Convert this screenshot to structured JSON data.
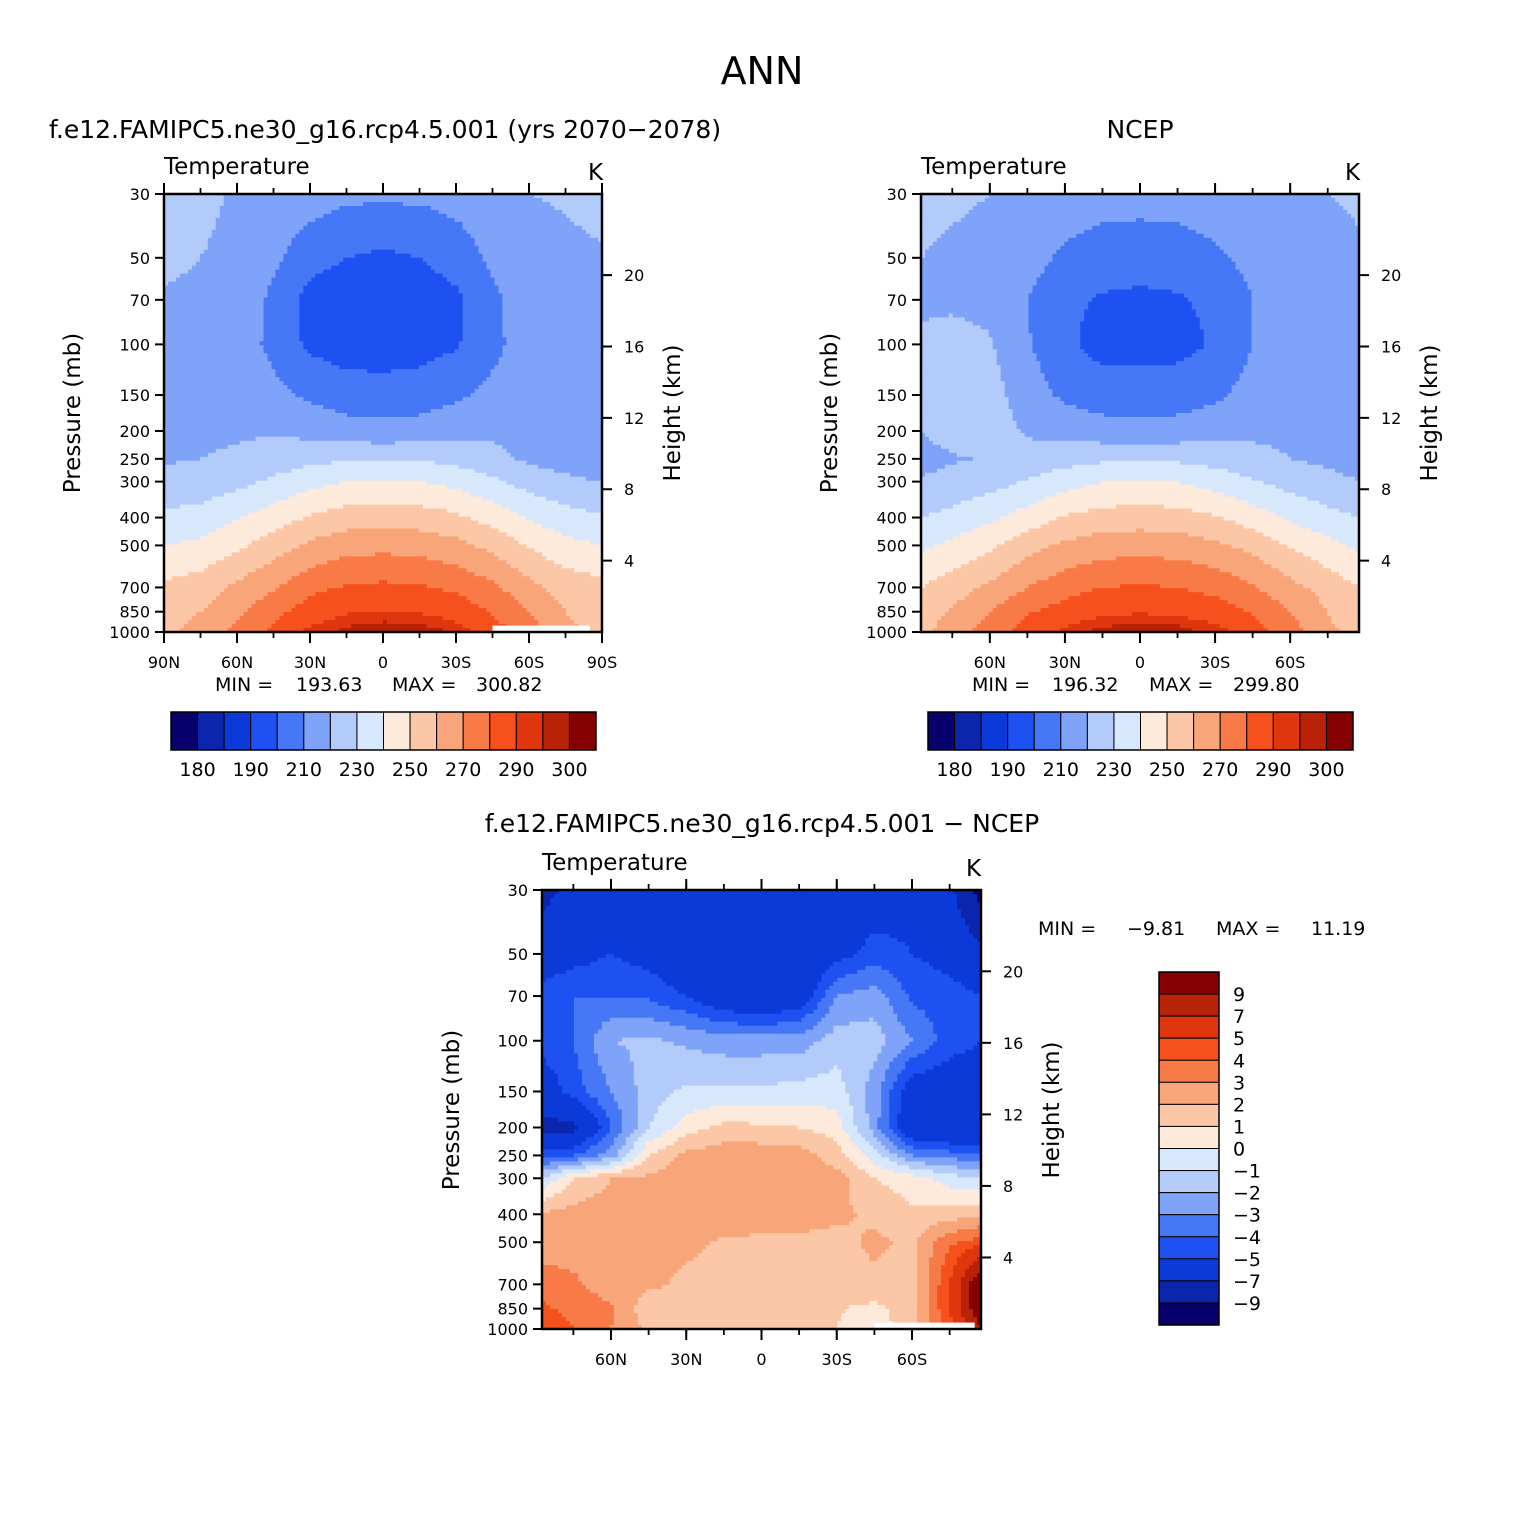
{
  "page_title": "ANN",
  "colors": {
    "temperature_levels": [
      "#08006c",
      "#0b26ac",
      "#0c3ad9",
      "#1e51f2",
      "#4677f6",
      "#7ea3f8",
      "#b2cbfb",
      "#d8e8fc",
      "#feeada",
      "#fcc7a6",
      "#f9a57a",
      "#f87a46",
      "#f6501d",
      "#e0360e",
      "#b82206",
      "#850000"
    ],
    "difference_levels": [
      "#08006c",
      "#0b26ac",
      "#0c3ad9",
      "#1e51f2",
      "#4677f6",
      "#7ea3f8",
      "#b2cbfb",
      "#d8e8fc",
      "#feeada",
      "#fcc7a6",
      "#f9a57a",
      "#f87a46",
      "#f6501d",
      "#e0360e",
      "#b82206",
      "#850000"
    ]
  },
  "chart_data": [
    {
      "type": "heatmap",
      "id": "model",
      "title": "f.e12.FAMIPC5.ne30_g16.rcp4.5.001 (yrs 2070−2078)",
      "field": "Temperature",
      "units": "K",
      "ylabel": "Pressure (mb)",
      "y2label": "Height (km)",
      "x_ticks": [
        "90N",
        "60N",
        "30N",
        "0",
        "30S",
        "60S",
        "90S"
      ],
      "x_tick_lat": [
        90,
        60,
        30,
        0,
        -30,
        -60,
        -90
      ],
      "xlim": [
        90,
        -90
      ],
      "pressure_ticks": [
        30,
        50,
        70,
        100,
        150,
        200,
        250,
        300,
        400,
        500,
        700,
        850,
        1000
      ],
      "pressure_tick_labels": [
        "30",
        "50",
        "70",
        "100",
        "150",
        "200",
        "250",
        "300",
        "400",
        "500",
        "700",
        "850",
        "1000"
      ],
      "ylim": [
        1000,
        30
      ],
      "height_ticks_km": [
        4,
        8,
        12,
        16,
        20
      ],
      "height_tick_labels": [
        "4",
        "8",
        "12",
        "16",
        "20"
      ],
      "stats": {
        "min_label": "MIN =",
        "min": "193.63",
        "max_label": "MAX =",
        "max": "300.82"
      },
      "contour_levels": [
        180,
        185,
        190,
        200,
        210,
        220,
        230,
        240,
        250,
        260,
        270,
        280,
        290,
        295,
        300
      ],
      "colorbar_labels": [
        "180",
        "190",
        "210",
        "230",
        "250",
        "270",
        "290",
        "300"
      ],
      "missing_lat_range": [
        -45,
        -85
      ],
      "lats": [
        90,
        75,
        60,
        45,
        30,
        15,
        0,
        -15,
        -30,
        -45,
        -60,
        -75,
        -90
      ],
      "grid_values": [
        [
          224,
          222,
          219,
          217,
          215,
          212,
          212,
          212,
          214,
          217,
          220,
          221,
          223
        ],
        [
          222,
          220,
          218,
          212,
          204,
          200,
          198,
          200,
          204,
          212,
          216,
          218,
          219
        ],
        [
          219,
          218,
          216,
          208,
          196,
          193.63,
          194,
          195,
          198,
          208,
          215,
          215,
          213
        ],
        [
          219,
          218,
          216,
          207,
          198,
          195,
          195,
          196,
          199,
          207,
          216,
          214,
          211
        ],
        [
          218,
          218,
          218,
          213,
          208,
          205,
          204,
          205,
          208,
          213,
          215,
          214,
          212
        ],
        [
          218,
          219,
          219,
          219,
          217,
          214,
          213,
          214,
          217,
          218,
          216,
          214,
          213
        ],
        [
          219,
          220,
          221,
          224,
          227,
          229,
          229,
          229,
          227,
          223,
          218,
          216,
          214
        ],
        [
          223,
          224,
          227,
          232,
          237,
          240,
          241,
          240,
          237,
          232,
          226,
          222,
          220
        ],
        [
          232,
          234,
          239,
          245,
          251,
          255,
          256,
          255,
          252,
          246,
          239,
          234,
          231
        ],
        [
          240,
          242,
          248,
          255,
          262,
          266,
          267,
          266,
          263,
          257,
          249,
          243,
          240
        ],
        [
          252,
          255,
          262,
          269,
          277,
          281,
          282,
          281,
          278,
          272,
          263,
          256,
          253
        ],
        [
          256,
          260,
          268,
          277,
          285,
          289,
          290,
          289,
          286,
          279,
          270,
          260,
          256
        ],
        [
          258,
          263,
          273,
          282,
          292,
          297,
          300,
          299,
          294,
          285,
          275,
          262,
          258
        ]
      ]
    },
    {
      "type": "heatmap",
      "id": "obs",
      "title": "NCEP",
      "field": "Temperature",
      "units": "K",
      "ylabel": "Pressure (mb)",
      "y2label": "Height (km)",
      "x_ticks": [
        "60N",
        "30N",
        "0",
        "30S",
        "60S"
      ],
      "x_tick_lat": [
        60,
        30,
        0,
        -30,
        -60
      ],
      "xlim": [
        87.5,
        -87.5
      ],
      "pressure_ticks": [
        30,
        50,
        70,
        100,
        150,
        200,
        250,
        300,
        400,
        500,
        700,
        850,
        1000
      ],
      "pressure_tick_labels": [
        "30",
        "50",
        "70",
        "100",
        "150",
        "200",
        "250",
        "300",
        "400",
        "500",
        "700",
        "850",
        "1000"
      ],
      "ylim": [
        1000,
        30
      ],
      "height_ticks_km": [
        4,
        8,
        12,
        16,
        20
      ],
      "height_tick_labels": [
        "4",
        "8",
        "12",
        "16",
        "20"
      ],
      "stats": {
        "min_label": "MIN =",
        "min": "196.32",
        "max_label": "MAX =",
        "max": "299.80"
      },
      "contour_levels": [
        180,
        185,
        190,
        200,
        210,
        220,
        230,
        240,
        250,
        260,
        270,
        280,
        290,
        295,
        300
      ],
      "colorbar_labels": [
        "180",
        "190",
        "210",
        "230",
        "250",
        "270",
        "290",
        "300"
      ],
      "missing_lat_range": null,
      "lats": [
        87.5,
        75,
        60,
        45,
        30,
        15,
        0,
        -15,
        -30,
        -45,
        -60,
        -75,
        -87.5
      ],
      "grid_values": [
        [
          222,
          221,
          220,
          218,
          216,
          214,
          214,
          214,
          216,
          218,
          219,
          220,
          221
        ],
        [
          220,
          219,
          218,
          214,
          208,
          205,
          204,
          205,
          208,
          213,
          216,
          218,
          219
        ],
        [
          218,
          218,
          217,
          210,
          202,
          199,
          198,
          199,
          202,
          210,
          215,
          216,
          215
        ],
        [
          222,
          224,
          221,
          211,
          202,
          196.32,
          197,
          197,
          201,
          210,
          215,
          213,
          210
        ],
        [
          225,
          227,
          224,
          215,
          208,
          205,
          204,
          205,
          208,
          214,
          216,
          214,
          212
        ],
        [
          220,
          224,
          224,
          219,
          216,
          214,
          213,
          214,
          216,
          218,
          218,
          216,
          214
        ],
        [
          217,
          219,
          221,
          223,
          226,
          228,
          228,
          228,
          226,
          223,
          220,
          218,
          216
        ],
        [
          221,
          223,
          226,
          231,
          236,
          240,
          240,
          240,
          236,
          231,
          226,
          223,
          220
        ],
        [
          230,
          233,
          238,
          244,
          251,
          254,
          255,
          254,
          251,
          245,
          238,
          233,
          230
        ],
        [
          238,
          242,
          248,
          256,
          262,
          265,
          266,
          265,
          262,
          257,
          249,
          243,
          238
        ],
        [
          250,
          255,
          262,
          270,
          276,
          280,
          281,
          280,
          277,
          271,
          263,
          256,
          250
        ],
        [
          256,
          261,
          270,
          279,
          284,
          288,
          289,
          288,
          285,
          279,
          270,
          260,
          254
        ],
        [
          258,
          264,
          275,
          284,
          292,
          297,
          299.8,
          298,
          293,
          285,
          275,
          262,
          256
        ]
      ]
    },
    {
      "type": "heatmap",
      "id": "diff",
      "title": "f.e12.FAMIPC5.ne30_g16.rcp4.5.001 − NCEP",
      "field": "Temperature",
      "units": "K",
      "ylabel": "Pressure (mb)",
      "y2label": "Height (km)",
      "x_ticks": [
        "60N",
        "30N",
        "0",
        "30S",
        "60S"
      ],
      "x_tick_lat": [
        60,
        30,
        0,
        -30,
        -60
      ],
      "xlim": [
        87.5,
        -87.5
      ],
      "pressure_ticks": [
        30,
        50,
        70,
        100,
        150,
        200,
        250,
        300,
        400,
        500,
        700,
        850,
        1000
      ],
      "pressure_tick_labels": [
        "30",
        "50",
        "70",
        "100",
        "150",
        "200",
        "250",
        "300",
        "400",
        "500",
        "700",
        "850",
        "1000"
      ],
      "ylim": [
        1000,
        30
      ],
      "height_ticks_km": [
        4,
        8,
        12,
        16,
        20
      ],
      "height_tick_labels": [
        "4",
        "8",
        "12",
        "16",
        "20"
      ],
      "stats": {
        "min_label": "MIN =",
        "min": "−9.81",
        "max_label": "MAX =",
        "max": "11.19"
      },
      "contour_levels": [
        -9,
        -7,
        -5,
        -4,
        -3,
        -2,
        -1,
        0,
        1,
        2,
        3,
        4,
        5,
        7,
        9
      ],
      "colorbar_labels": [
        "9",
        "7",
        "5",
        "4",
        "3",
        "2",
        "1",
        "0",
        "−1",
        "−2",
        "−3",
        "−4",
        "−5",
        "−7",
        "−9"
      ],
      "missing_lat_range": [
        -45,
        -85
      ],
      "lats": [
        87.5,
        75,
        60,
        45,
        30,
        15,
        0,
        -15,
        -30,
        -45,
        -60,
        -75,
        -87.5
      ],
      "grid_values": [
        [
          -7.5,
          -6.5,
          -6,
          -6.2,
          -6.8,
          -7,
          -6,
          -6.5,
          -6.5,
          -6,
          -5.5,
          -6.5,
          -9.81
        ],
        [
          -6,
          -5.5,
          -5,
          -5.5,
          -6.5,
          -7,
          -7,
          -6.8,
          -5.5,
          -4.5,
          -5,
          -5.5,
          -6.5
        ],
        [
          -4.5,
          -4,
          -4,
          -4.2,
          -5,
          -6.2,
          -6.8,
          -6,
          -3,
          -2.5,
          -4.2,
          -4.5,
          -5
        ],
        [
          -4.5,
          -4,
          -2,
          -1.8,
          -2.2,
          -2.5,
          -2.5,
          -2.5,
          -1.5,
          -1.5,
          -3,
          -4.5,
          -5
        ],
        [
          -6,
          -4.5,
          -3,
          -1.5,
          -0.8,
          -0.8,
          -0.8,
          -0.6,
          -0.5,
          -2.5,
          -6,
          -6,
          -6
        ],
        [
          -7.5,
          -7.5,
          -4,
          -1,
          0.5,
          1.3,
          1.2,
          1,
          0.5,
          -2.5,
          -6.5,
          -7,
          -7
        ],
        [
          -4.5,
          -4,
          -2.5,
          1,
          2.3,
          2.6,
          2.6,
          2.5,
          1.5,
          -0.5,
          -3,
          -3.5,
          -3.5
        ],
        [
          -1,
          1,
          2,
          2.2,
          2.5,
          2.7,
          2.8,
          2.6,
          2.4,
          1,
          0.5,
          -0.5,
          -1
        ],
        [
          2.2,
          2.4,
          2.5,
          2.6,
          2.6,
          2.5,
          2.5,
          2.4,
          2.2,
          1.8,
          1.2,
          1.5,
          1.8
        ],
        [
          2.5,
          2.5,
          2.4,
          2.2,
          2.2,
          1.9,
          1.8,
          1.8,
          1.7,
          2.2,
          1.8,
          3.8,
          4.5
        ],
        [
          3.5,
          3.2,
          2.4,
          2.2,
          1.8,
          1.6,
          1.7,
          1.7,
          1.6,
          1.8,
          1.5,
          5,
          11.19
        ],
        [
          4.2,
          3.6,
          3.2,
          1.3,
          1.5,
          1.7,
          1.6,
          1.5,
          1.1,
          0.7,
          1.5,
          5,
          11
        ],
        [
          5,
          4,
          3,
          1.8,
          1.2,
          1.3,
          1.5,
          1.5,
          1,
          0.5,
          1.5,
          4.5,
          9
        ]
      ]
    }
  ]
}
